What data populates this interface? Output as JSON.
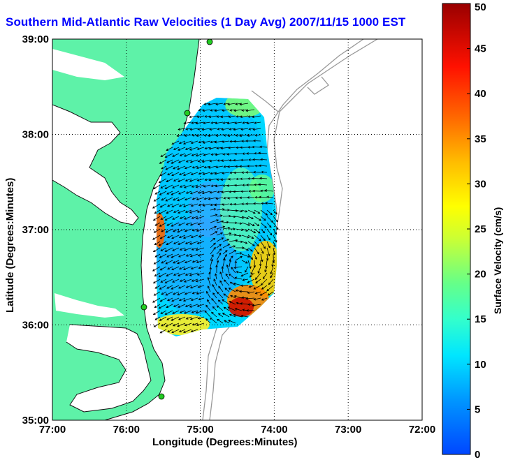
{
  "title": "Southern Mid-Atlantic Raw Velocities (1 Day Avg) 2007/11/15 1000 EST",
  "xlabel": "Longitude (Degrees:Minutes)",
  "ylabel": "Latitude (Degrees:Minutes)",
  "colorbar": {
    "label": "Surface Velocity (cm/s)",
    "range": [
      0,
      50
    ],
    "ticks": [
      "0",
      "5",
      "10",
      "15",
      "20",
      "25",
      "30",
      "35",
      "40",
      "45",
      "50"
    ]
  },
  "map": {
    "lon_range": [
      -77,
      -72
    ],
    "lat_range": [
      35,
      39
    ],
    "x_ticks": [
      "77:00",
      "76:00",
      "75:00",
      "74:00",
      "73:00",
      "72:00"
    ],
    "y_ticks": [
      "35:00",
      "36:00",
      "37:00",
      "38:00",
      "39:00"
    ],
    "grid": "dotted",
    "colors": {
      "land": "#5ef2a8",
      "water": "#ffffff",
      "bathymetry": "#999999",
      "station": "#22cc22"
    }
  }
}
